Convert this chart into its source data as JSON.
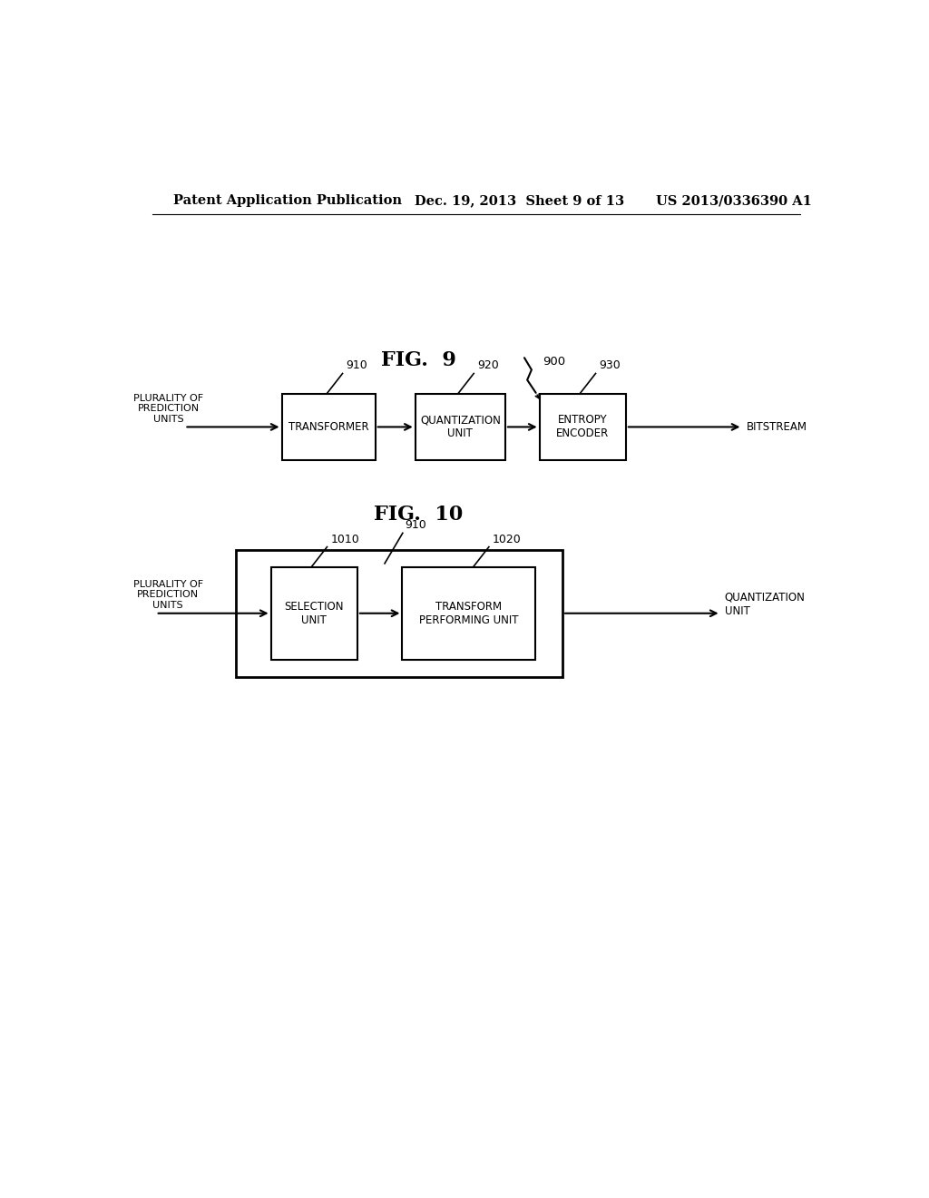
{
  "bg_color": "#ffffff",
  "header_left": "Patent Application Publication",
  "header_mid": "Dec. 19, 2013  Sheet 9 of 13",
  "header_right": "US 2013/0336390 A1",
  "fig9_title": "FIG.  9",
  "fig10_title": "FIG.  10"
}
